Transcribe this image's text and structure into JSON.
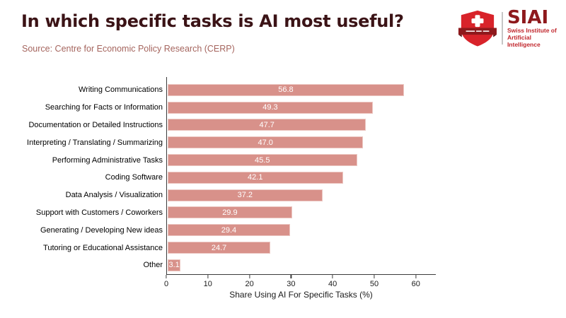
{
  "header": {
    "title": "In which specific tasks is AI most useful?",
    "title_color": "#3b1316",
    "source": "Source: Centre for Economic Policy Research (CERP)",
    "source_color": "#a5655e"
  },
  "logo": {
    "icon": "swiss-shield-icon",
    "acronym": "SIAI",
    "subtitle_line1": "Swiss Institute of",
    "subtitle_line2": "Artificial Intelligence",
    "acronym_color": "#8e191c",
    "subtitle_color": "#c1272d",
    "shield_color": "#d8232a",
    "banner_color": "#8e191c"
  },
  "chart_data": {
    "type": "bar",
    "orientation": "horizontal",
    "categories": [
      "Writing Communications",
      "Searching for Facts or Information",
      "Documentation or Detailed Instructions",
      "Interpreting / Translating / Summarizing",
      "Performing Administrative Tasks",
      "Coding Software",
      "Data Analysis / Visualization",
      "Support with Customers / Coworkers",
      "Generating / Developing New ideas",
      "Tutoring or Educational Assistance",
      "Other"
    ],
    "values": [
      56.8,
      49.3,
      47.7,
      47.0,
      45.5,
      42.1,
      37.2,
      29.9,
      29.4,
      24.7,
      3.1
    ],
    "xlabel": "Share Using AI For Specific Tasks (%)",
    "x_ticks": [
      0,
      10,
      20,
      30,
      40,
      50,
      60
    ],
    "xlim": [
      0,
      64.8
    ],
    "grid": false,
    "legend": false,
    "bar_fill": "#d8918a",
    "bar_border": "#ecc7c2",
    "value_label_color": "#ffffff",
    "axis_color": "#3c3c3c",
    "label_color": "#000000"
  }
}
